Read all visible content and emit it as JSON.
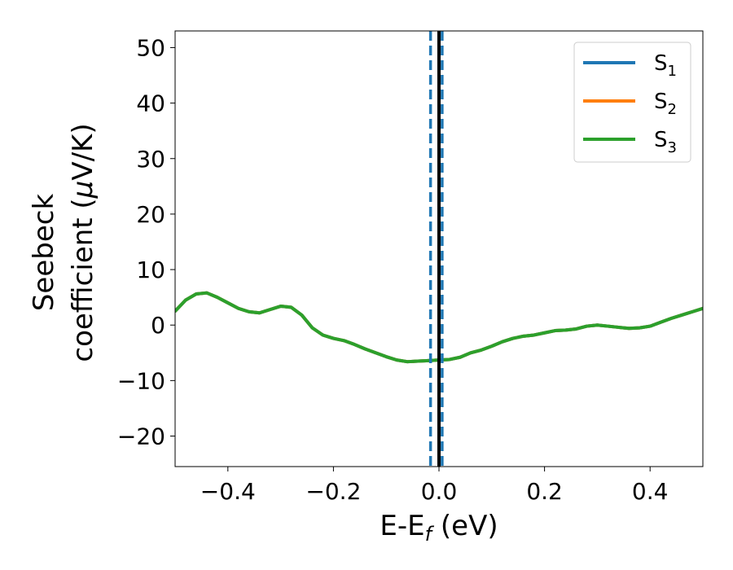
{
  "chart_data": {
    "type": "line",
    "title": "",
    "xlabel": "E-E",
    "xlabel_sub": "f",
    "xlabel_unit": " (eV)",
    "ylabel_line1": "Seebeck",
    "ylabel_line2": "coefficient  (",
    "ylabel_mu": "μ",
    "ylabel_unit": "V/K)",
    "xlim": [
      -0.5,
      0.5
    ],
    "ylim": [
      -25.5,
      53
    ],
    "xticks": [
      -0.4,
      -0.2,
      0.0,
      0.2,
      0.4
    ],
    "xtick_labels": [
      "−0.4",
      "−0.2",
      "0.0",
      "0.2",
      "0.4"
    ],
    "yticks": [
      -20,
      -10,
      0,
      10,
      20,
      30,
      40,
      50
    ],
    "ytick_labels": [
      "−20",
      "−10",
      "0",
      "10",
      "20",
      "30",
      "40",
      "50"
    ],
    "grid": false,
    "legend_placement": "top-right",
    "x": [
      -0.5,
      -0.48,
      -0.46,
      -0.44,
      -0.42,
      -0.4,
      -0.38,
      -0.36,
      -0.34,
      -0.32,
      -0.3,
      -0.28,
      -0.26,
      -0.24,
      -0.22,
      -0.2,
      -0.18,
      -0.16,
      -0.14,
      -0.12,
      -0.1,
      -0.08,
      -0.06,
      -0.04,
      -0.02,
      0.0,
      0.02,
      0.04,
      0.06,
      0.08,
      0.1,
      0.12,
      0.14,
      0.16,
      0.18,
      0.2,
      0.22,
      0.24,
      0.26,
      0.28,
      0.3,
      0.32,
      0.34,
      0.36,
      0.38,
      0.4,
      0.42,
      0.44,
      0.46,
      0.48,
      0.5
    ],
    "series": [
      {
        "name": "S1",
        "label_main": "S",
        "label_sub": "1",
        "color": "#1f77b4",
        "values": [
          2.5,
          4.5,
          5.6,
          5.8,
          5.0,
          4.0,
          3.0,
          2.4,
          2.2,
          2.8,
          3.4,
          3.2,
          1.8,
          -0.5,
          -1.8,
          -2.4,
          -2.8,
          -3.5,
          -4.3,
          -5.0,
          -5.7,
          -6.3,
          -6.6,
          -6.5,
          -6.4,
          -6.3,
          -6.2,
          -5.8,
          -5.0,
          -4.5,
          -3.8,
          -3.0,
          -2.4,
          -2.0,
          -1.8,
          -1.4,
          -1.0,
          -0.9,
          -0.7,
          -0.2,
          0.0,
          -0.2,
          -0.4,
          -0.6,
          -0.5,
          -0.2,
          0.5,
          1.2,
          1.8,
          2.4,
          3.0
        ]
      },
      {
        "name": "S2",
        "label_main": "S",
        "label_sub": "2",
        "color": "#ff7f0e",
        "values": [
          2.5,
          4.5,
          5.6,
          5.8,
          5.0,
          4.0,
          3.0,
          2.4,
          2.2,
          2.8,
          3.4,
          3.2,
          1.8,
          -0.5,
          -1.8,
          -2.4,
          -2.8,
          -3.5,
          -4.3,
          -5.0,
          -5.7,
          -6.3,
          -6.6,
          -6.5,
          -6.4,
          -6.3,
          -6.2,
          -5.8,
          -5.0,
          -4.5,
          -3.8,
          -3.0,
          -2.4,
          -2.0,
          -1.8,
          -1.4,
          -1.0,
          -0.9,
          -0.7,
          -0.2,
          0.0,
          -0.2,
          -0.4,
          -0.6,
          -0.5,
          -0.2,
          0.5,
          1.2,
          1.8,
          2.4,
          3.0
        ]
      },
      {
        "name": "S3",
        "label_main": "S",
        "label_sub": "3",
        "color": "#2ca02c",
        "values": [
          2.5,
          4.5,
          5.6,
          5.8,
          5.0,
          4.0,
          3.0,
          2.4,
          2.2,
          2.8,
          3.4,
          3.2,
          1.8,
          -0.5,
          -1.8,
          -2.4,
          -2.8,
          -3.5,
          -4.3,
          -5.0,
          -5.7,
          -6.3,
          -6.6,
          -6.5,
          -6.4,
          -6.3,
          -6.2,
          -5.8,
          -5.0,
          -4.5,
          -3.8,
          -3.0,
          -2.4,
          -2.0,
          -1.8,
          -1.4,
          -1.0,
          -0.9,
          -0.7,
          -0.2,
          0.0,
          -0.2,
          -0.4,
          -0.6,
          -0.5,
          -0.2,
          0.5,
          1.2,
          1.8,
          2.4,
          3.0
        ]
      }
    ],
    "vlines": [
      {
        "x": 0.0,
        "style": "solid",
        "color": "#000000"
      },
      {
        "x": -0.016,
        "style": "dashed",
        "color": "#1f77b4"
      },
      {
        "x": 0.006,
        "style": "dashed",
        "color": "#1f77b4"
      }
    ]
  }
}
